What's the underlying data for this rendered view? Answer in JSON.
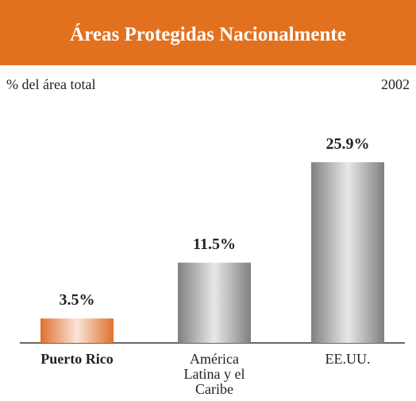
{
  "chart_data": {
    "type": "bar",
    "title": "Áreas Protegidas Nacionalmente",
    "subtitle": "% del área total",
    "annotation": "2002",
    "categories": [
      "Puerto Rico",
      "América Latina y el Caribe",
      "EE.UU."
    ],
    "values": [
      3.5,
      11.5,
      25.9
    ],
    "value_labels": [
      "3.5%",
      "11.5%",
      "25.9%"
    ],
    "colors": [
      "#e0702e",
      "#808080",
      "#808080"
    ]
  }
}
